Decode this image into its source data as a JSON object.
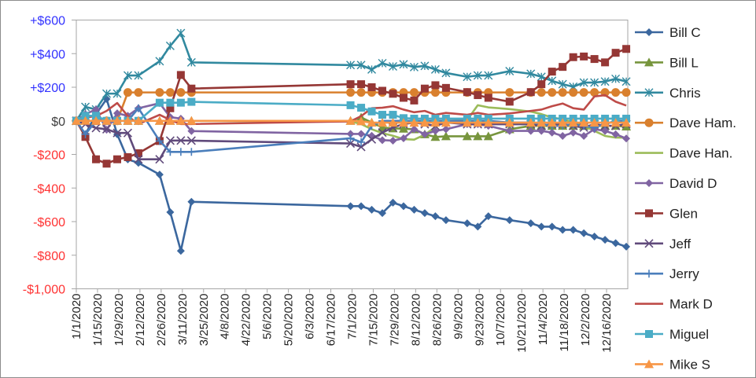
{
  "chart_data": {
    "type": "line",
    "title": "",
    "xlabel": "",
    "ylabel": "",
    "ylim": [
      -1000,
      600
    ],
    "xlim": [
      "1/1/2020",
      "12/30/2020"
    ],
    "grid": false,
    "legend_placement": "right",
    "y_ticks": [
      {
        "value": 600,
        "label": "+$600"
      },
      {
        "value": 400,
        "label": "+$400"
      },
      {
        "value": 200,
        "label": "+$200"
      },
      {
        "value": 0,
        "label": "$0"
      },
      {
        "value": -200,
        "label": "-$200"
      },
      {
        "value": -400,
        "label": "-$400"
      },
      {
        "value": -600,
        "label": "-$600"
      },
      {
        "value": -800,
        "label": "-$800"
      },
      {
        "value": -1000,
        "label": "-$1,000"
      }
    ],
    "y_tick_colors": {
      "positive": "#3333ff",
      "zero": "#404040",
      "negative": "#ff3333"
    },
    "x_ticks": [
      "1/1/2020",
      "1/15/2020",
      "1/29/2020",
      "2/12/2020",
      "2/26/2020",
      "3/11/2020",
      "3/25/2020",
      "4/8/2020",
      "4/22/2020",
      "5/6/2020",
      "5/20/2020",
      "6/3/2020",
      "6/17/2020",
      "7/1/2020",
      "7/15/2020",
      "7/29/2020",
      "8/12/2020",
      "8/26/2020",
      "9/9/2020",
      "9/23/2020",
      "10/7/2020",
      "10/21/2020",
      "11/4/2020",
      "11/18/2020",
      "12/2/2020",
      "12/16/2020"
    ],
    "x": [
      "1/1/2020",
      "1/7/2020",
      "1/14/2020",
      "1/21/2020",
      "1/28/2020",
      "2/4/2020",
      "2/11/2020",
      "2/25/2020",
      "3/3/2020",
      "3/10/2020",
      "3/17/2020",
      "6/30/2020",
      "7/7/2020",
      "7/14/2020",
      "7/21/2020",
      "7/28/2020",
      "8/4/2020",
      "8/11/2020",
      "8/18/2020",
      "8/25/2020",
      "9/1/2020",
      "9/15/2020",
      "9/22/2020",
      "9/29/2020",
      "10/13/2020",
      "10/27/2020",
      "11/3/2020",
      "11/10/2020",
      "11/17/2020",
      "11/24/2020",
      "12/1/2020",
      "12/8/2020",
      "12/15/2020",
      "12/22/2020",
      "12/29/2020"
    ],
    "series": [
      {
        "name": "Bill C",
        "color": "#3b679e",
        "marker": "diamond",
        "values": [
          0,
          -80,
          40,
          130,
          -80,
          -230,
          -250,
          -320,
          -544,
          -774,
          -482,
          -508,
          -508,
          -529,
          -549,
          -487,
          -508,
          -529,
          -549,
          -568,
          -591,
          -610,
          -630,
          -568,
          -591,
          -610,
          -630,
          -630,
          -649,
          -649,
          -669,
          -689,
          -708,
          -728,
          -749
        ]
      },
      {
        "name": "Bill L",
        "color": "#77953d",
        "marker": "triangle",
        "values": [
          0,
          0,
          0,
          0,
          0,
          0,
          0,
          0,
          0,
          0,
          0,
          0,
          20,
          -10,
          -40,
          -45,
          -47,
          -50,
          -80,
          -96,
          -92,
          -92,
          -92,
          -92,
          -50,
          -30,
          -30,
          -30,
          -30,
          -30,
          -30,
          -30,
          -30,
          -30,
          -34
        ]
      },
      {
        "name": "Chris",
        "color": "#31899f",
        "marker": "asterisk",
        "values": [
          0,
          83,
          68,
          162,
          162,
          270,
          270,
          355,
          446,
          522,
          348,
          332,
          332,
          306,
          343,
          324,
          336,
          320,
          327,
          306,
          285,
          262,
          270,
          270,
          296,
          280,
          262,
          238,
          218,
          203,
          228,
          228,
          234,
          250,
          234
        ]
      },
      {
        "name": "Dave Ham.",
        "color": "#d9802e",
        "marker": "circle",
        "values": [
          0,
          0,
          0,
          0,
          0,
          169,
          169,
          169,
          169,
          169,
          169,
          169,
          169,
          169,
          169,
          169,
          169,
          169,
          169,
          169,
          169,
          169,
          169,
          169,
          169,
          169,
          169,
          169,
          169,
          169,
          169,
          169,
          169,
          169,
          169
        ]
      },
      {
        "name": "Dave Han.",
        "color": "#9bbb59",
        "marker": "none",
        "values": [
          0,
          0,
          0,
          0,
          0,
          0,
          0,
          0,
          0,
          0,
          0,
          -3,
          -19,
          -50,
          -73,
          -89,
          -109,
          -112,
          -82,
          -37,
          0,
          5,
          93,
          80,
          70,
          55,
          40,
          20,
          10,
          -10,
          -30,
          -60,
          -90,
          -100,
          -100
        ]
      },
      {
        "name": "David D",
        "color": "#8064a2",
        "marker": "diamond",
        "values": [
          0,
          40,
          68,
          -53,
          45,
          30,
          75,
          105,
          22,
          13,
          -61,
          -78,
          -78,
          -89,
          -115,
          -118,
          -104,
          -50,
          -80,
          -60,
          -50,
          -20,
          -20,
          -30,
          -60,
          -60,
          -60,
          -70,
          -90,
          -70,
          -90,
          -50,
          -60,
          -80,
          -105
        ]
      },
      {
        "name": "Glen",
        "color": "#953735",
        "marker": "square",
        "values": [
          0,
          -96,
          -229,
          -255,
          -229,
          -216,
          -193,
          -120,
          75,
          273,
          192,
          218,
          218,
          200,
          179,
          161,
          137,
          121,
          192,
          212,
          196,
          171,
          153,
          137,
          114,
          171,
          218,
          293,
          321,
          379,
          383,
          368,
          348,
          405,
          428
        ]
      },
      {
        "name": "Jeff",
        "color": "#604a7b",
        "marker": "x",
        "values": [
          0,
          -20,
          -43,
          -50,
          -72,
          -72,
          -229,
          -229,
          -118,
          -117,
          -118,
          -135,
          -155,
          -110,
          -70,
          -40,
          -20,
          -10,
          -20,
          -30,
          -10,
          -20,
          -20,
          -20,
          -20,
          -20,
          -30,
          -20,
          -20,
          -30,
          -40,
          -20,
          -30,
          -30,
          -20
        ]
      },
      {
        "name": "Jerry",
        "color": "#4a7ebb",
        "marker": "plus",
        "values": [
          0,
          -80,
          0,
          0,
          0,
          0,
          75,
          -120,
          -185,
          -185,
          -185,
          -104,
          -127,
          -30,
          0,
          0,
          0,
          0,
          0,
          0,
          0,
          0,
          0,
          0,
          -10,
          -10,
          -20,
          -30,
          -30,
          -20,
          -30,
          -40,
          -20,
          0,
          0
        ]
      },
      {
        "name": "Mark D",
        "color": "#be4b48",
        "marker": "none",
        "values": [
          0,
          20,
          28,
          59,
          106,
          28,
          -19,
          36,
          5,
          -19,
          -19,
          -3,
          28,
          75,
          78,
          87,
          67,
          51,
          59,
          36,
          47,
          36,
          47,
          36,
          44,
          59,
          67,
          87,
          103,
          75,
          67,
          145,
          153,
          114,
          91
        ]
      },
      {
        "name": "Miguel",
        "color": "#4bacc6",
        "marker": "square",
        "values": [
          0,
          30,
          30,
          0,
          0,
          0,
          0,
          108,
          108,
          108,
          113,
          93,
          78,
          56,
          36,
          36,
          16,
          13,
          13,
          13,
          13,
          13,
          13,
          13,
          13,
          13,
          13,
          13,
          13,
          13,
          13,
          13,
          13,
          13,
          13
        ]
      },
      {
        "name": "Mike S",
        "color": "#f79646",
        "marker": "triangle",
        "values": [
          0,
          0,
          0,
          0,
          0,
          0,
          0,
          0,
          0,
          0,
          0,
          0,
          -3,
          -11,
          -11,
          -11,
          -11,
          -11,
          -11,
          -11,
          -11,
          -11,
          -11,
          -11,
          -11,
          -11,
          -11,
          -11,
          -11,
          -11,
          -11,
          -11,
          -11,
          -11,
          -11
        ]
      }
    ]
  }
}
